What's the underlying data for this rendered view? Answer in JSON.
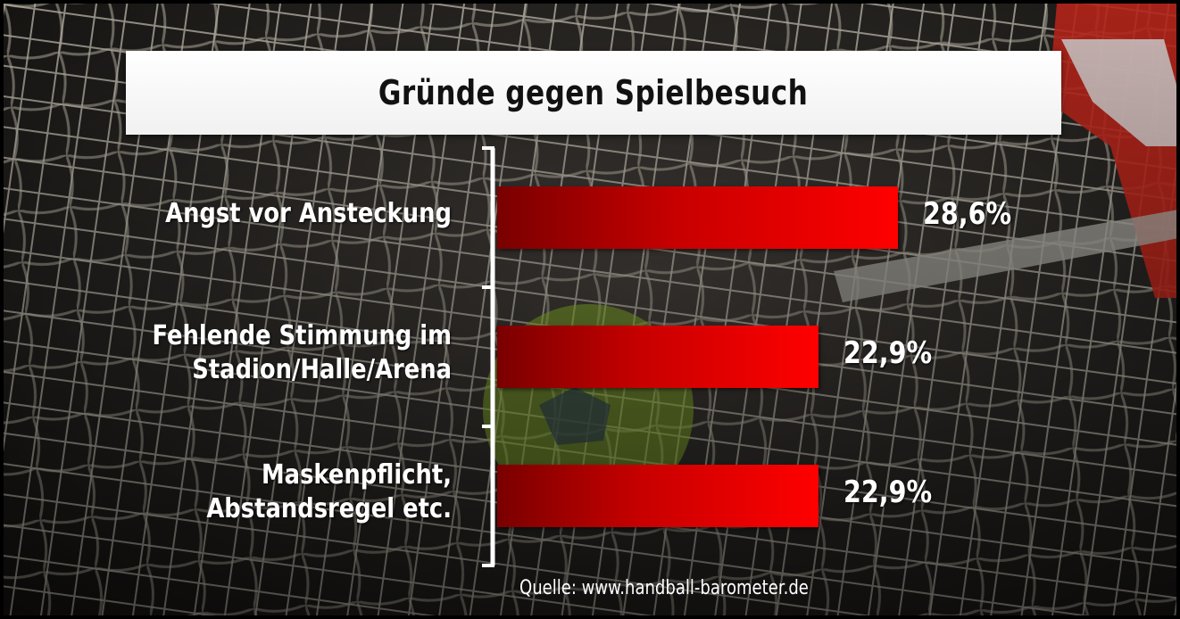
{
  "chart_data": {
    "type": "bar",
    "orientation": "horizontal",
    "title": "Gründe gegen Spielbesuch",
    "categories": [
      [
        "Angst vor Ansteckung"
      ],
      [
        "Fehlende Stimmung im",
        "Stadion/Halle/Arena"
      ],
      [
        "Maskenpflicht,",
        "Abstandsregel etc."
      ]
    ],
    "values": [
      28.6,
      22.9,
      22.9
    ],
    "value_labels": [
      "28,6%",
      "22,9%",
      "22,9%"
    ],
    "unit": "%",
    "bar_color": "#ff0000",
    "grid": false,
    "legend": "none"
  },
  "source": "Quelle: www.handball-barometer.de",
  "background": {
    "description_colors": {
      "dark": "#2c2926",
      "net": "#e6e2d6",
      "post_red": "#d42a1e",
      "ball_green": "#9ecf2e"
    }
  }
}
